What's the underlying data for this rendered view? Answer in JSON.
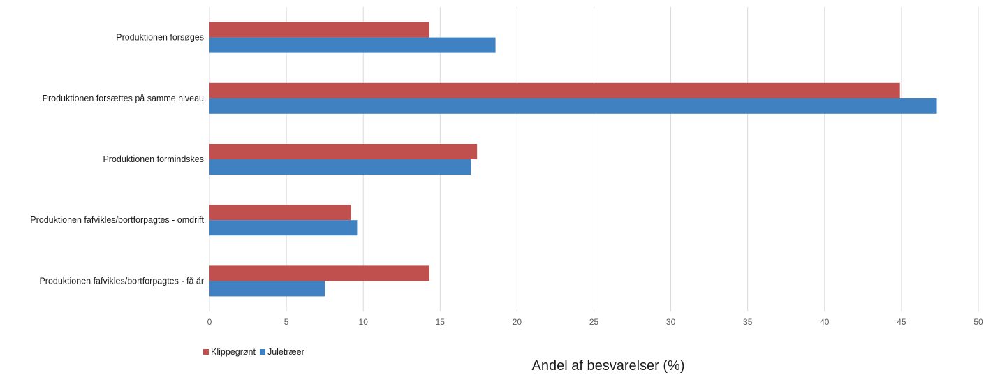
{
  "chart_data": {
    "type": "bar",
    "orientation": "horizontal",
    "categories": [
      "Produktionen forsøges",
      "Produktionen forsættes på samme niveau",
      "Produktionen formindskes",
      "Produktionen fafvikles/bortforpagtes - omdrift",
      "Produktionen fafvikles/bortforpagtes - få år"
    ],
    "series": [
      {
        "name": "Klippegrønt",
        "color": "#c0504d",
        "values": [
          14.3,
          44.9,
          17.4,
          9.2,
          14.3
        ]
      },
      {
        "name": "Juletræer",
        "color": "#3f81c1",
        "values": [
          18.6,
          47.3,
          17.0,
          9.6,
          7.5
        ]
      }
    ],
    "xlim": [
      0,
      50
    ],
    "xticks": [
      "0",
      "5",
      "10",
      "15",
      "20",
      "25",
      "30",
      "35",
      "40",
      "45",
      "50"
    ],
    "xlabel": "Andel af besvarelser (%)",
    "grid": "vertical",
    "legend_position": "bottom-left"
  }
}
